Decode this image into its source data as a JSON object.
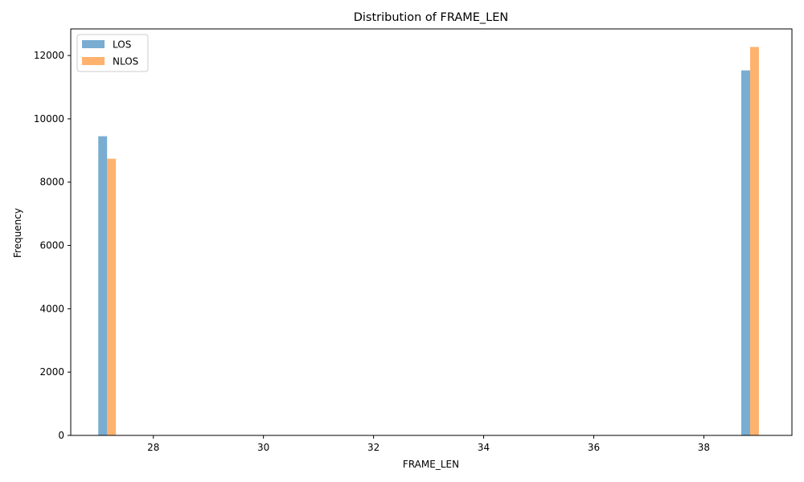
{
  "chart_data": {
    "type": "bar",
    "title": "Distribution of FRAME_LEN",
    "xlabel": "FRAME_LEN",
    "ylabel": "Frequency",
    "xlim": [
      26.5,
      39.6
    ],
    "ylim": [
      0,
      12840
    ],
    "xticks": [
      28,
      30,
      32,
      34,
      36,
      38
    ],
    "yticks": [
      0,
      2000,
      4000,
      6000,
      8000,
      10000,
      12000
    ],
    "grid": false,
    "legend_position": "upper-left",
    "series": [
      {
        "name": "LOS",
        "color": "#1f77b4",
        "opacity": 0.6,
        "bars": [
          {
            "x0": 27.0,
            "x1": 27.16,
            "value": 9450
          },
          {
            "x0": 38.68,
            "x1": 38.84,
            "value": 11530
          }
        ]
      },
      {
        "name": "NLOS",
        "color": "#ff7f0e",
        "opacity": 0.6,
        "bars": [
          {
            "x0": 27.16,
            "x1": 27.32,
            "value": 8740
          },
          {
            "x0": 38.84,
            "x1": 39.0,
            "value": 12270
          }
        ]
      }
    ]
  }
}
